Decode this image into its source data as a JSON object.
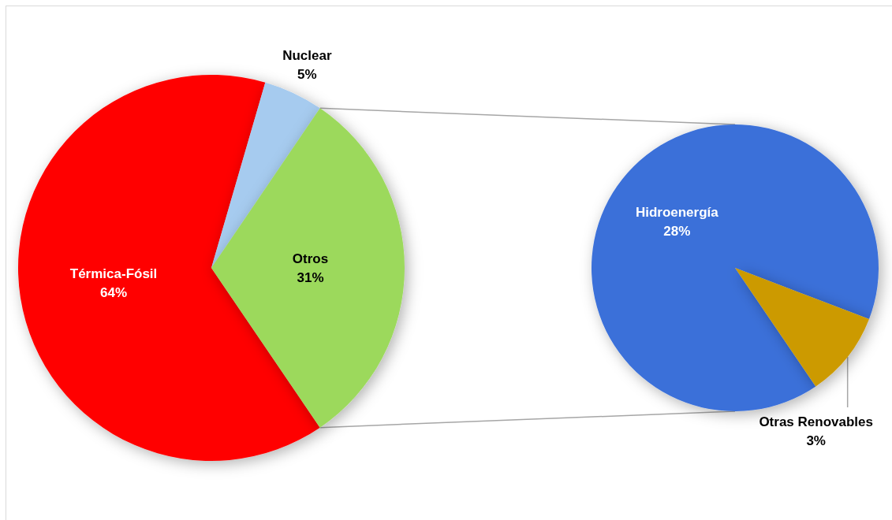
{
  "chart_data": [
    {
      "type": "pie",
      "categories": [
        "Térmica-Fósil",
        "Nuclear",
        "Otros"
      ],
      "values": [
        64,
        5,
        31
      ],
      "colors": [
        "#ff0000",
        "#a6cbef",
        "#9cd95c"
      ],
      "value_labels": [
        "64%",
        "5%",
        "31%"
      ]
    },
    {
      "type": "pie",
      "categories": [
        "Hidroenergía",
        "Otras Renovables"
      ],
      "values": [
        28,
        3
      ],
      "colors": [
        "#3b70d9",
        "#cc9a06"
      ],
      "value_labels": [
        "28%",
        "3%"
      ]
    }
  ]
}
